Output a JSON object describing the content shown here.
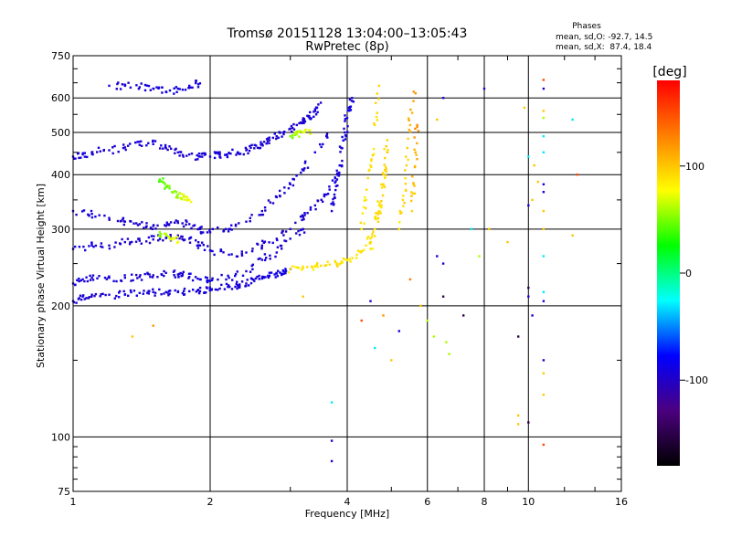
{
  "chart_data": {
    "type": "scatter",
    "title": "Tromsø 20151128 13:04:00–13:05:43",
    "subtitle": "RwPretec (8p)",
    "xlabel": "Frequency [MHz]",
    "ylabel": "Stationary phase Virtual Height [km]",
    "x_scale": "log",
    "y_scale": "log",
    "xlim": [
      1,
      16
    ],
    "ylim": [
      75,
      750
    ],
    "x_ticks": [
      {
        "value": 1,
        "label": "1"
      },
      {
        "value": 2,
        "label": "2"
      },
      {
        "value": 4,
        "label": "4"
      },
      {
        "value": 6,
        "label": "6"
      },
      {
        "value": 8,
        "label": "8"
      },
      {
        "value": 10,
        "label": "10"
      },
      {
        "value": 16,
        "label": "16"
      }
    ],
    "y_ticks": [
      {
        "value": 75,
        "label": "75"
      },
      {
        "value": 100,
        "label": "100"
      },
      {
        "value": 200,
        "label": "200"
      },
      {
        "value": 300,
        "label": "300"
      },
      {
        "value": 400,
        "label": "400"
      },
      {
        "value": 500,
        "label": "500"
      },
      {
        "value": 600,
        "label": "600"
      },
      {
        "value": 750,
        "label": "750"
      }
    ],
    "grid": true,
    "phase_stats": {
      "heading": "Phases",
      "line_o": "mean, sd,O: -92.7, 14.5",
      "line_x": "mean, sd,X:  87.4, 18.4"
    },
    "colorbar": {
      "label": "[deg]",
      "range": [
        -180,
        180
      ],
      "ticks": [
        {
          "value": 100,
          "label": "100"
        },
        {
          "value": 0,
          "label": "0"
        },
        {
          "value": -100,
          "label": "-100"
        }
      ],
      "colormap": [
        "#000000",
        "#4b007f",
        "#0000ff",
        "#00ffff",
        "#00ff00",
        "#ffff00",
        "#ff7f00",
        "#ff0000"
      ]
    },
    "series": [
      {
        "trace": "low-frequency-band",
        "x": [
          1.0,
          1.05,
          1.1,
          1.2,
          1.3,
          1.4,
          1.5,
          1.6,
          1.7,
          1.8,
          1.9,
          2.0,
          2.1,
          2.2,
          2.3,
          2.4,
          2.5,
          2.6,
          2.7,
          2.8,
          2.9,
          3.0
        ],
        "y": [
          205,
          210,
          212,
          212,
          212,
          214,
          215,
          215,
          215,
          216,
          216,
          218,
          219,
          221,
          223,
          225,
          228,
          231,
          234,
          237,
          240,
          243
        ],
        "phase": [
          -95,
          -95,
          -95,
          -92,
          -92,
          -90,
          -92,
          -93,
          -92,
          -92,
          -91,
          -92,
          -92,
          -93,
          -93,
          -92,
          -92,
          -92,
          -90,
          -88,
          -85,
          -80
        ]
      },
      {
        "trace": "lower-o-trace",
        "x": [
          1.0,
          1.05,
          1.1,
          1.2,
          1.3,
          1.4,
          1.5,
          1.6,
          1.7,
          1.8,
          1.9,
          2.0,
          2.2,
          2.4,
          2.6,
          2.8,
          3.0,
          3.2
        ],
        "y": [
          225,
          230,
          232,
          232,
          232,
          233,
          235,
          238,
          236,
          233,
          230,
          228,
          232,
          240,
          255,
          265,
          285,
          300
        ],
        "phase": [
          -90,
          -92,
          -92,
          -93,
          -95,
          -95,
          -94,
          -92,
          -93,
          -92,
          -92,
          -90,
          -90,
          -92,
          -95,
          -95,
          -95,
          -95
        ]
      },
      {
        "trace": "middle-o-trace",
        "x": [
          1.0,
          1.1,
          1.2,
          1.3,
          1.4,
          1.5,
          1.6,
          1.7,
          1.8,
          1.9,
          2.0,
          2.2,
          2.4,
          2.6,
          2.8,
          3.0,
          3.2,
          3.4,
          3.6,
          3.8
        ],
        "y": [
          270,
          275,
          275,
          280,
          282,
          284,
          286,
          290,
          285,
          275,
          268,
          262,
          265,
          275,
          285,
          300,
          320,
          340,
          360,
          400
        ],
        "phase": [
          -92,
          -92,
          -95,
          -95,
          -96,
          -95,
          -95,
          -96,
          -95,
          -95,
          -92,
          -92,
          -93,
          -95,
          -95,
          -96,
          -95,
          -95,
          -93,
          -90
        ]
      },
      {
        "trace": "upper-o-trace",
        "x": [
          1.0,
          1.1,
          1.2,
          1.3,
          1.4,
          1.5,
          1.6,
          1.7,
          1.8,
          1.9,
          2.0,
          2.2,
          2.4,
          2.6,
          2.8,
          3.0,
          3.2,
          3.4,
          3.6
        ],
        "y": [
          330,
          325,
          318,
          312,
          308,
          305,
          305,
          310,
          308,
          300,
          295,
          300,
          312,
          330,
          355,
          380,
          410,
          450,
          490
        ],
        "phase": [
          -93,
          -93,
          -95,
          -95,
          -95,
          -95,
          -95,
          -96,
          -95,
          -95,
          -93,
          -93,
          -95,
          -95,
          -95,
          -95,
          -93,
          -92,
          -92
        ]
      },
      {
        "trace": "f2-overhead-band",
        "x": [
          1.0,
          1.05,
          1.1,
          1.2,
          1.3,
          1.4,
          1.5,
          1.6,
          1.7,
          1.8,
          1.9,
          2.0,
          2.1,
          2.2,
          2.3,
          2.4,
          2.5,
          2.6,
          2.7,
          2.8,
          2.9
        ],
        "y": [
          440,
          445,
          450,
          455,
          462,
          468,
          470,
          460,
          450,
          445,
          440,
          440,
          445,
          448,
          450,
          455,
          460,
          470,
          480,
          490,
          500
        ],
        "phase": [
          -93,
          -93,
          -94,
          -95,
          -95,
          -94,
          -92,
          -94,
          -95,
          -95,
          -94,
          -93,
          -92,
          -93,
          -94,
          -95,
          -95,
          -94,
          -93,
          -92,
          -92
        ]
      },
      {
        "trace": "oblique-high-band",
        "x": [
          1.2,
          1.3,
          1.4,
          1.5,
          1.6,
          1.7,
          1.8,
          1.9
        ],
        "y": [
          640,
          640,
          635,
          630,
          620,
          630,
          640,
          648
        ],
        "phase": [
          -95,
          -95,
          -94,
          -94,
          -92,
          -90,
          -92,
          -92
        ]
      },
      {
        "trace": "upper-right-o-arc",
        "x": [
          3.0,
          3.1,
          3.2,
          3.3,
          3.4,
          3.5
        ],
        "y": [
          510,
          520,
          530,
          545,
          560,
          585
        ],
        "phase": [
          -95,
          -95,
          -94,
          -93,
          -93,
          -92
        ]
      },
      {
        "trace": "o-cusp",
        "x": [
          3.7,
          3.75,
          3.8,
          3.85,
          3.9,
          3.95,
          4.0,
          4.05,
          4.1
        ],
        "y": [
          330,
          360,
          390,
          420,
          460,
          500,
          540,
          570,
          600
        ],
        "phase": [
          -95,
          -94,
          -94,
          -93,
          -93,
          -92,
          -92,
          -90,
          -90
        ]
      },
      {
        "trace": "x-trace-main",
        "x": [
          3.0,
          3.2,
          3.4,
          3.6,
          3.8,
          4.0,
          4.2,
          4.4,
          4.6,
          4.7,
          4.8,
          4.9
        ],
        "y": [
          243,
          244,
          246,
          248,
          250,
          255,
          262,
          275,
          300,
          330,
          380,
          450
        ],
        "phase": [
          88,
          88,
          90,
          90,
          90,
          88,
          88,
          88,
          90,
          92,
          95,
          100
        ]
      },
      {
        "trace": "x-trace-cusp-1",
        "x": [
          4.3,
          4.4,
          4.5,
          4.6,
          4.7
        ],
        "y": [
          300,
          350,
          420,
          520,
          640
        ],
        "phase": [
          85,
          86,
          88,
          90,
          95
        ]
      },
      {
        "trace": "x-trace-cusp-2",
        "x": [
          4.5,
          4.6,
          4.7,
          4.8,
          4.9
        ],
        "y": [
          270,
          300,
          340,
          400,
          480
        ],
        "phase": [
          88,
          88,
          90,
          92,
          95
        ]
      },
      {
        "trace": "x-trace-cusp-3",
        "x": [
          5.2,
          5.3,
          5.4,
          5.5,
          5.6
        ],
        "y": [
          300,
          350,
          420,
          520,
          620
        ],
        "phase": [
          90,
          92,
          95,
          105,
          120
        ]
      },
      {
        "trace": "x-trace-cusp-4",
        "x": [
          5.55,
          5.6,
          5.65,
          5.7
        ],
        "y": [
          330,
          380,
          450,
          520
        ],
        "phase": [
          95,
          100,
          110,
          125
        ]
      },
      {
        "trace": "green-blob-a",
        "x": [
          1.55,
          1.6,
          1.65,
          1.7,
          1.75,
          1.8
        ],
        "y": [
          390,
          375,
          365,
          360,
          355,
          350
        ],
        "phase": [
          40,
          45,
          50,
          60,
          70,
          80
        ]
      },
      {
        "trace": "green-blob-b",
        "x": [
          1.55,
          1.6,
          1.65,
          1.7
        ],
        "y": [
          295,
          290,
          285,
          280
        ],
        "phase": [
          50,
          60,
          70,
          75
        ]
      },
      {
        "trace": "green-blob-c",
        "x": [
          3.0,
          3.1,
          3.2,
          3.3
        ],
        "y": [
          490,
          495,
          500,
          505
        ],
        "phase": [
          50,
          60,
          70,
          75
        ]
      }
    ],
    "scatter_points": [
      {
        "x": 1.35,
        "y": 170,
        "phase": 100
      },
      {
        "x": 1.5,
        "y": 180,
        "phase": 120
      },
      {
        "x": 3.2,
        "y": 210,
        "phase": 100
      },
      {
        "x": 3.7,
        "y": 120,
        "phase": -30
      },
      {
        "x": 3.7,
        "y": 98,
        "phase": -95
      },
      {
        "x": 3.7,
        "y": 88,
        "phase": -95
      },
      {
        "x": 4.3,
        "y": 185,
        "phase": 150
      },
      {
        "x": 4.5,
        "y": 205,
        "phase": -95
      },
      {
        "x": 4.6,
        "y": 160,
        "phase": -30
      },
      {
        "x": 4.8,
        "y": 190,
        "phase": 120
      },
      {
        "x": 5.0,
        "y": 150,
        "phase": 100
      },
      {
        "x": 5.2,
        "y": 175,
        "phase": -95
      },
      {
        "x": 5.5,
        "y": 230,
        "phase": 130
      },
      {
        "x": 5.8,
        "y": 200,
        "phase": 100
      },
      {
        "x": 6.0,
        "y": 185,
        "phase": 60
      },
      {
        "x": 6.2,
        "y": 170,
        "phase": 60
      },
      {
        "x": 6.3,
        "y": 260,
        "phase": -95
      },
      {
        "x": 6.5,
        "y": 210,
        "phase": -150
      },
      {
        "x": 6.5,
        "y": 250,
        "phase": -95
      },
      {
        "x": 6.6,
        "y": 165,
        "phase": 60
      },
      {
        "x": 6.7,
        "y": 155,
        "phase": 60
      },
      {
        "x": 6.5,
        "y": 600,
        "phase": -95
      },
      {
        "x": 6.3,
        "y": 535,
        "phase": 100
      },
      {
        "x": 7.2,
        "y": 190,
        "phase": -150
      },
      {
        "x": 7.5,
        "y": 300,
        "phase": -30
      },
      {
        "x": 7.8,
        "y": 260,
        "phase": 60
      },
      {
        "x": 8.0,
        "y": 630,
        "phase": -95
      },
      {
        "x": 8.2,
        "y": 300,
        "phase": 100
      },
      {
        "x": 9.0,
        "y": 280,
        "phase": 100
      },
      {
        "x": 9.5,
        "y": 170,
        "phase": -150
      },
      {
        "x": 9.5,
        "y": 112,
        "phase": 100
      },
      {
        "x": 9.5,
        "y": 107,
        "phase": 100
      },
      {
        "x": 9.8,
        "y": 570,
        "phase": 100
      },
      {
        "x": 10.0,
        "y": 440,
        "phase": -30
      },
      {
        "x": 10.0,
        "y": 340,
        "phase": -95
      },
      {
        "x": 10.0,
        "y": 220,
        "phase": -150
      },
      {
        "x": 10.0,
        "y": 210,
        "phase": -95
      },
      {
        "x": 10.0,
        "y": 108,
        "phase": -150
      },
      {
        "x": 10.2,
        "y": 190,
        "phase": -95
      },
      {
        "x": 10.2,
        "y": 350,
        "phase": 100
      },
      {
        "x": 10.3,
        "y": 420,
        "phase": 100
      },
      {
        "x": 10.5,
        "y": 385,
        "phase": 100
      },
      {
        "x": 10.8,
        "y": 660,
        "phase": 150
      },
      {
        "x": 10.8,
        "y": 630,
        "phase": -95
      },
      {
        "x": 10.8,
        "y": 560,
        "phase": 100
      },
      {
        "x": 10.8,
        "y": 540,
        "phase": 60
      },
      {
        "x": 10.8,
        "y": 490,
        "phase": -30
      },
      {
        "x": 10.8,
        "y": 450,
        "phase": -30
      },
      {
        "x": 10.8,
        "y": 380,
        "phase": -95
      },
      {
        "x": 10.8,
        "y": 365,
        "phase": -95
      },
      {
        "x": 10.8,
        "y": 330,
        "phase": 100
      },
      {
        "x": 10.8,
        "y": 300,
        "phase": 100
      },
      {
        "x": 10.8,
        "y": 260,
        "phase": -30
      },
      {
        "x": 10.8,
        "y": 215,
        "phase": -30
      },
      {
        "x": 10.8,
        "y": 205,
        "phase": -95
      },
      {
        "x": 10.8,
        "y": 150,
        "phase": -95
      },
      {
        "x": 10.8,
        "y": 140,
        "phase": 100
      },
      {
        "x": 10.8,
        "y": 125,
        "phase": 100
      },
      {
        "x": 10.8,
        "y": 96,
        "phase": 150
      },
      {
        "x": 12.5,
        "y": 535,
        "phase": -30
      },
      {
        "x": 12.8,
        "y": 400,
        "phase": 150
      },
      {
        "x": 12.5,
        "y": 290,
        "phase": 100
      }
    ]
  }
}
